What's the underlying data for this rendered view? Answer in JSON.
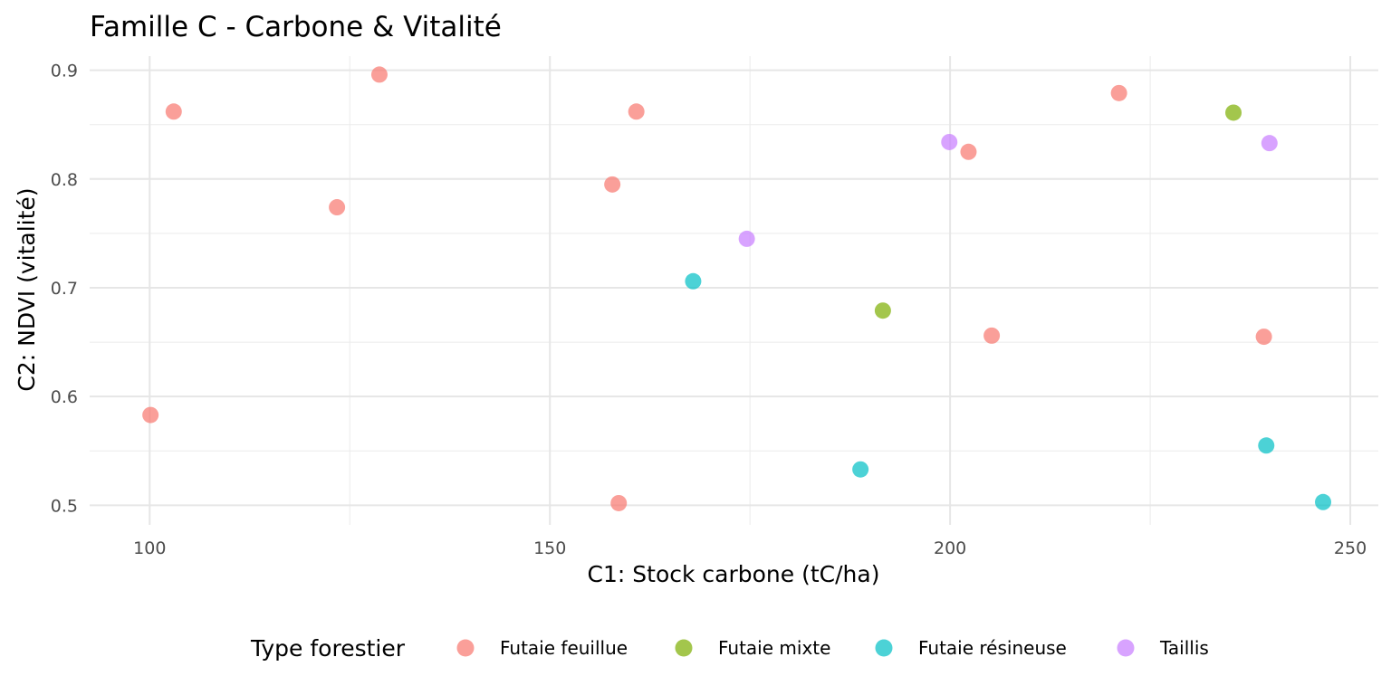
{
  "chart_data": {
    "type": "scatter",
    "title": "Famille C - Carbone & Vitalité",
    "xlabel": "C1: Stock carbone (tC/ha)",
    "ylabel": "C2: NDVI (vitalité)",
    "xlim": [
      92.5,
      253.5
    ],
    "ylim": [
      0.482,
      0.913
    ],
    "x_ticks": [
      100,
      150,
      200,
      250
    ],
    "y_ticks": [
      0.5,
      0.6,
      0.7,
      0.8,
      0.9
    ],
    "x_tick_labels": [
      "100",
      "150",
      "200",
      "250"
    ],
    "y_tick_labels": [
      "0.5",
      "0.6",
      "0.7",
      "0.8",
      "0.9"
    ],
    "grid": true,
    "legend": {
      "title": "Type forestier",
      "position": "bottom"
    },
    "series": [
      {
        "name": "Futaie feuillue",
        "color": "#F8766D",
        "points": [
          {
            "x": 103.0,
            "y": 0.862
          },
          {
            "x": 128.7,
            "y": 0.896
          },
          {
            "x": 123.4,
            "y": 0.774
          },
          {
            "x": 160.8,
            "y": 0.862
          },
          {
            "x": 157.8,
            "y": 0.795
          },
          {
            "x": 221.1,
            "y": 0.879
          },
          {
            "x": 202.3,
            "y": 0.825
          },
          {
            "x": 205.2,
            "y": 0.656
          },
          {
            "x": 239.2,
            "y": 0.655
          },
          {
            "x": 100.1,
            "y": 0.583
          },
          {
            "x": 158.6,
            "y": 0.502
          }
        ]
      },
      {
        "name": "Futaie mixte",
        "color": "#7CAE00",
        "points": [
          {
            "x": 235.4,
            "y": 0.861
          },
          {
            "x": 191.6,
            "y": 0.679
          }
        ]
      },
      {
        "name": "Futaie résineuse",
        "color": "#00BFC4",
        "points": [
          {
            "x": 167.9,
            "y": 0.706
          },
          {
            "x": 188.8,
            "y": 0.533
          },
          {
            "x": 239.5,
            "y": 0.555
          },
          {
            "x": 246.6,
            "y": 0.503
          }
        ]
      },
      {
        "name": "Taillis",
        "color": "#C77CFF",
        "points": [
          {
            "x": 199.9,
            "y": 0.834
          },
          {
            "x": 174.6,
            "y": 0.745
          },
          {
            "x": 239.9,
            "y": 0.833
          }
        ]
      }
    ]
  }
}
